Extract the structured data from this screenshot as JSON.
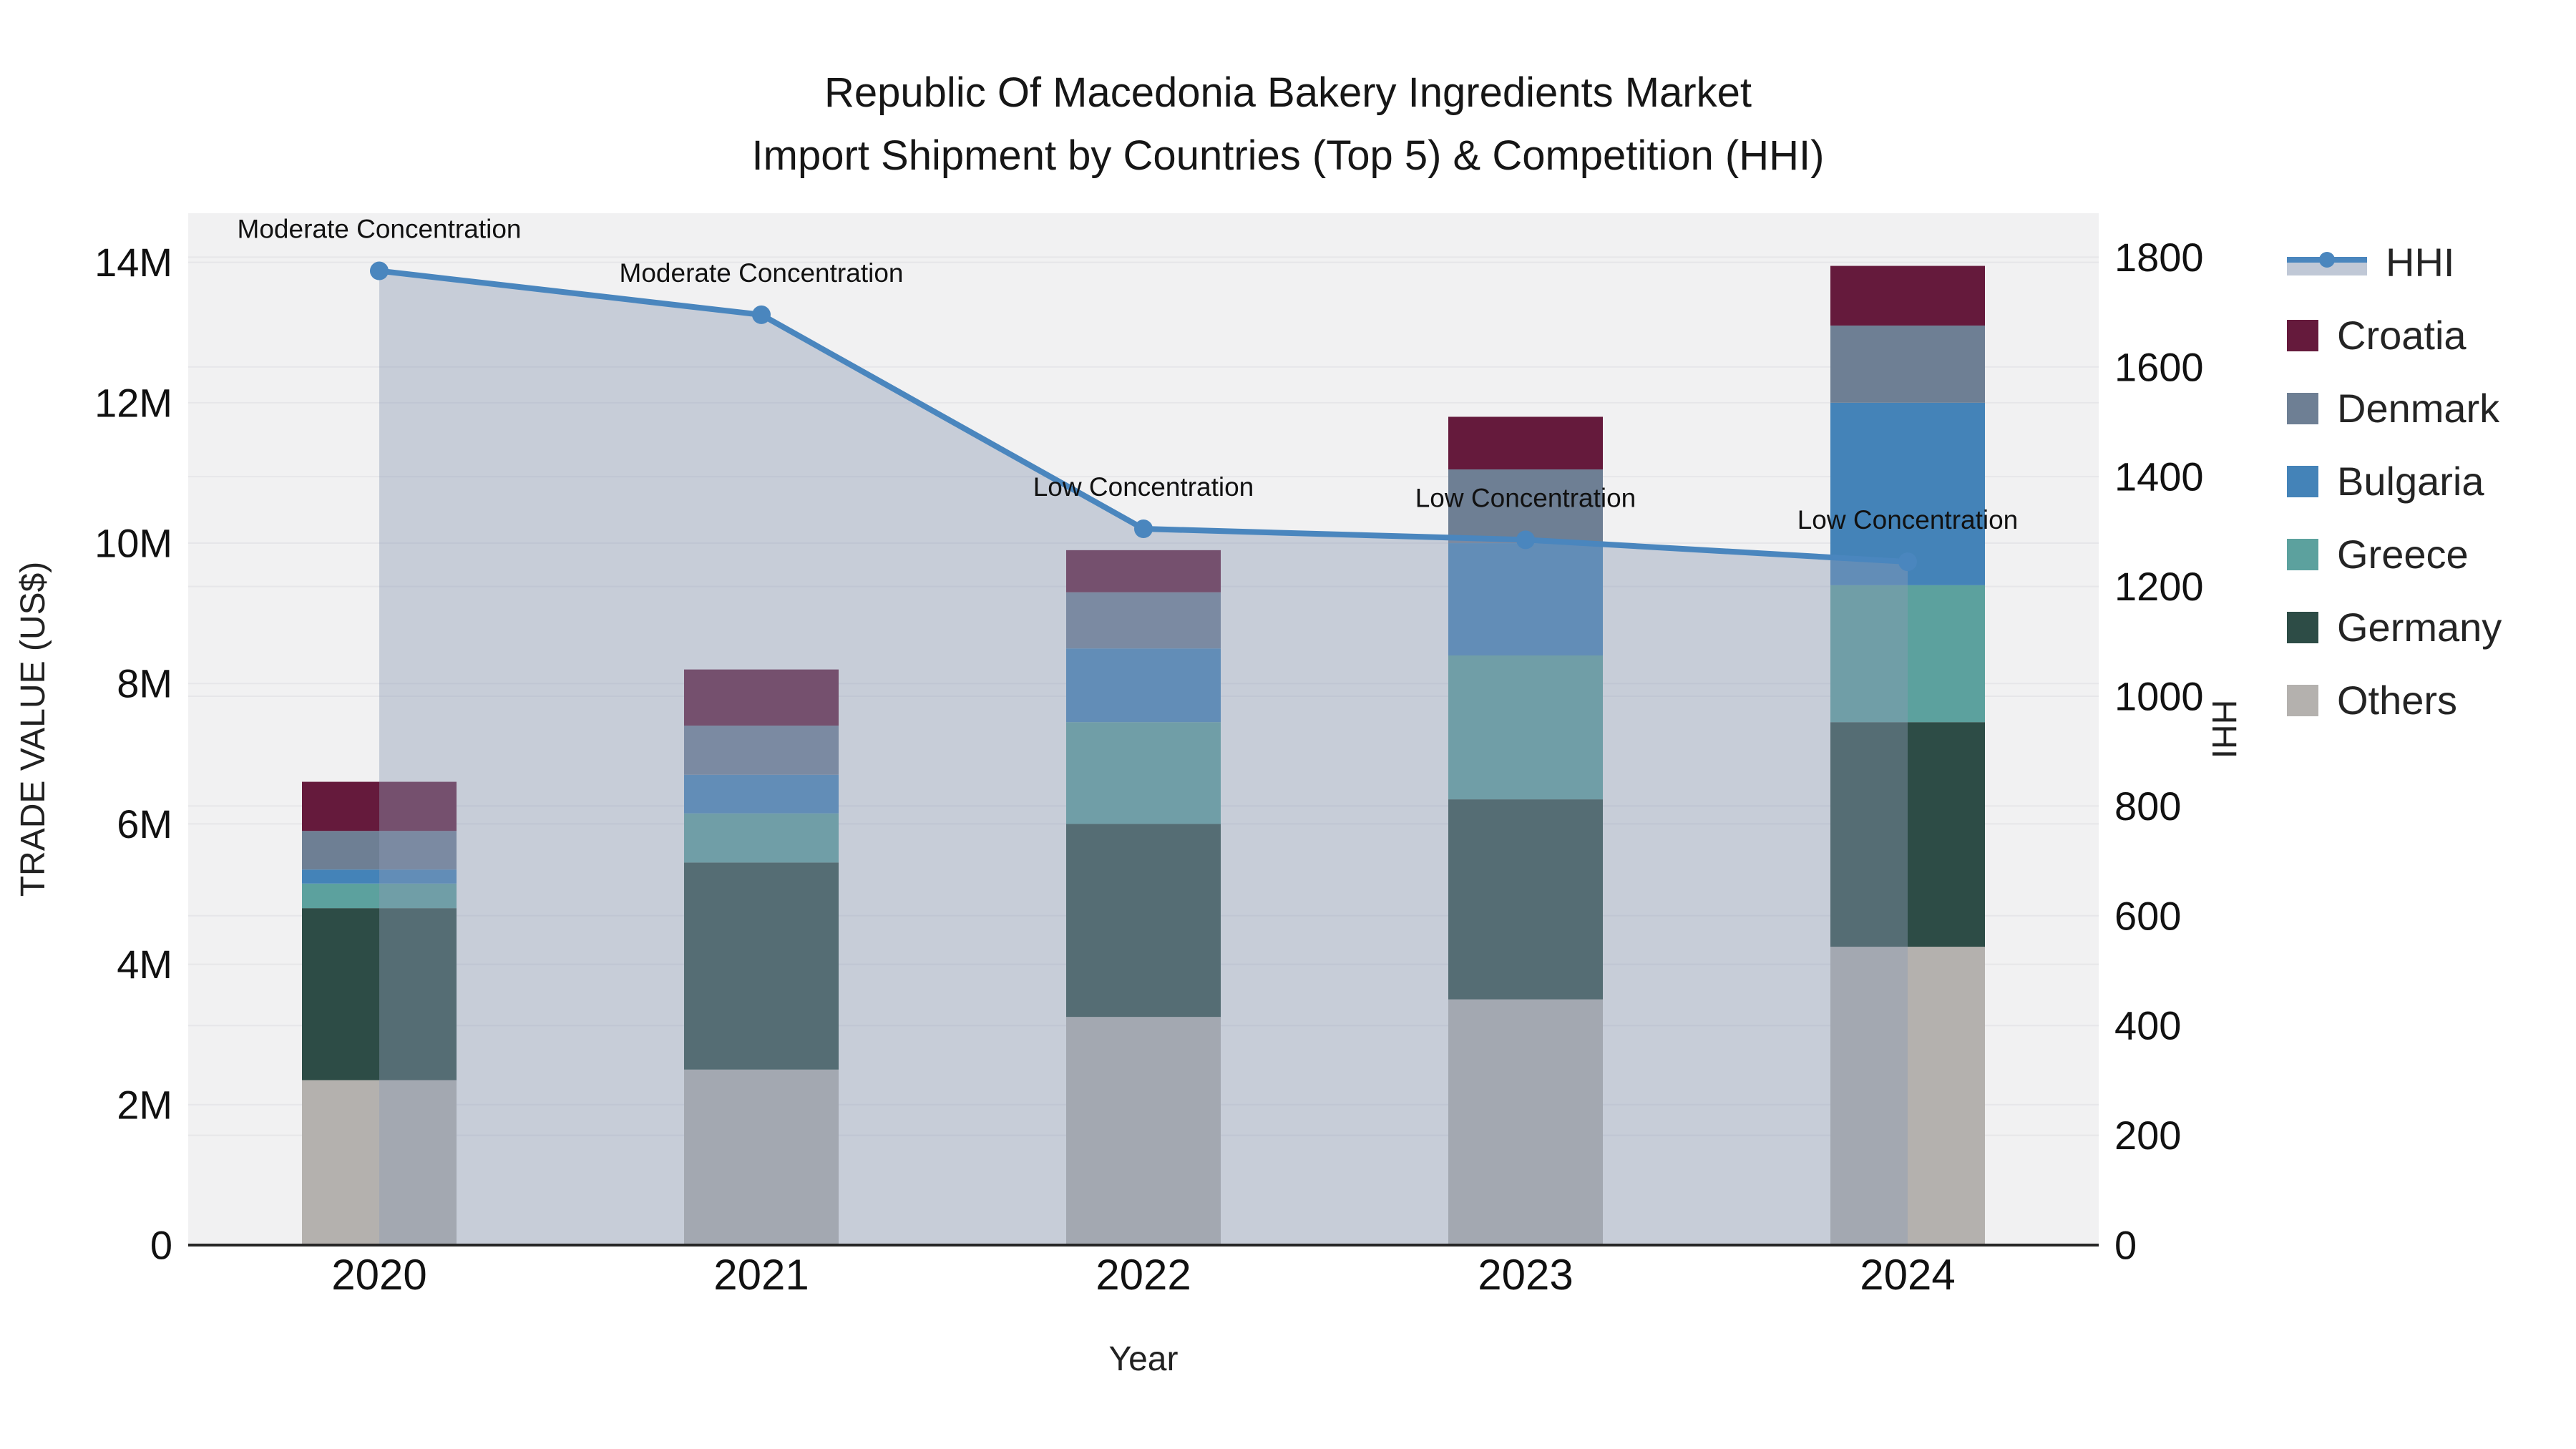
{
  "figure": {
    "title_line1": "Republic Of Macedonia Bakery Ingredients Market",
    "title_line2": "Import Shipment by Countries (Top 5) & Competition (HHI)"
  },
  "chart_data": {
    "type": "combo: stacked bar + line (secondary axis)",
    "categories": [
      "2020",
      "2021",
      "2022",
      "2023",
      "2024"
    ],
    "x_axis_title": "Year",
    "y_left_axis": {
      "title": "TRADE VALUE (US$)",
      "unit": "million US$",
      "range": [
        0,
        14.7
      ],
      "tick_values": [
        0,
        2,
        4,
        6,
        8,
        10,
        12,
        14
      ],
      "tick_labels": [
        "0",
        "2M",
        "4M",
        "6M",
        "8M",
        "10M",
        "12M",
        "14M"
      ]
    },
    "y_right_axis": {
      "title": "HHI",
      "range": [
        0,
        1880
      ],
      "tick_values": [
        0,
        200,
        400,
        600,
        800,
        1000,
        1200,
        1400,
        1600,
        1800
      ],
      "tick_labels": [
        "0",
        "200",
        "400",
        "600",
        "800",
        "1000",
        "1200",
        "1400",
        "1600",
        "1800"
      ]
    },
    "bar_series_bottom_to_top": [
      {
        "name": "Others",
        "color": "#b4b1ae",
        "values_musd": [
          2.35,
          2.5,
          3.25,
          3.5,
          4.25
        ]
      },
      {
        "name": "Germany",
        "color": "#2d4c46",
        "values_musd": [
          2.45,
          2.95,
          2.75,
          2.85,
          3.2
        ]
      },
      {
        "name": "Greece",
        "color": "#5ca19e",
        "values_musd": [
          0.35,
          0.7,
          1.45,
          2.05,
          1.95
        ]
      },
      {
        "name": "Bulgaria",
        "color": "#4483b8",
        "values_musd": [
          0.2,
          0.55,
          1.05,
          1.6,
          2.6
        ]
      },
      {
        "name": "Denmark",
        "color": "#6e7f94",
        "values_musd": [
          0.55,
          0.7,
          0.8,
          1.05,
          1.1
        ]
      },
      {
        "name": "Croatia",
        "color": "#651a3c",
        "values_musd": [
          0.7,
          0.8,
          0.6,
          0.75,
          0.85
        ]
      }
    ],
    "bar_totals_musd": [
      6.6,
      8.2,
      9.9,
      11.8,
      13.95
    ],
    "line_series": {
      "name": "HHI",
      "color": "#4a86be",
      "area_fill_color": "rgba(140,155,180,0.42)",
      "values": [
        1775,
        1695,
        1305,
        1285,
        1245
      ]
    },
    "annotations": [
      {
        "x": "2020",
        "text": "Moderate Concentration"
      },
      {
        "x": "2021",
        "text": "Moderate Concentration"
      },
      {
        "x": "2022",
        "text": "Low Concentration"
      },
      {
        "x": "2023",
        "text": "Low Concentration"
      },
      {
        "x": "2024",
        "text": "Low Concentration"
      }
    ],
    "legend_position": "right",
    "grid": true,
    "plot_background": "#f1f1f2"
  },
  "legend": {
    "items": [
      {
        "label": "HHI",
        "type": "line",
        "color": "#4a86be"
      },
      {
        "label": "Croatia",
        "type": "square",
        "color": "#651a3c"
      },
      {
        "label": "Denmark",
        "type": "square",
        "color": "#6e7f94"
      },
      {
        "label": "Bulgaria",
        "type": "square",
        "color": "#4483b8"
      },
      {
        "label": "Greece",
        "type": "square",
        "color": "#5ca19e"
      },
      {
        "label": "Germany",
        "type": "square",
        "color": "#2d4c46"
      },
      {
        "label": "Others",
        "type": "square",
        "color": "#b4b1ae"
      }
    ]
  },
  "style": {
    "axis_line_color": "#262626",
    "grid_color": "#e6e6e9",
    "tick_label_color": "#111111",
    "annotation_color": "#111111"
  }
}
